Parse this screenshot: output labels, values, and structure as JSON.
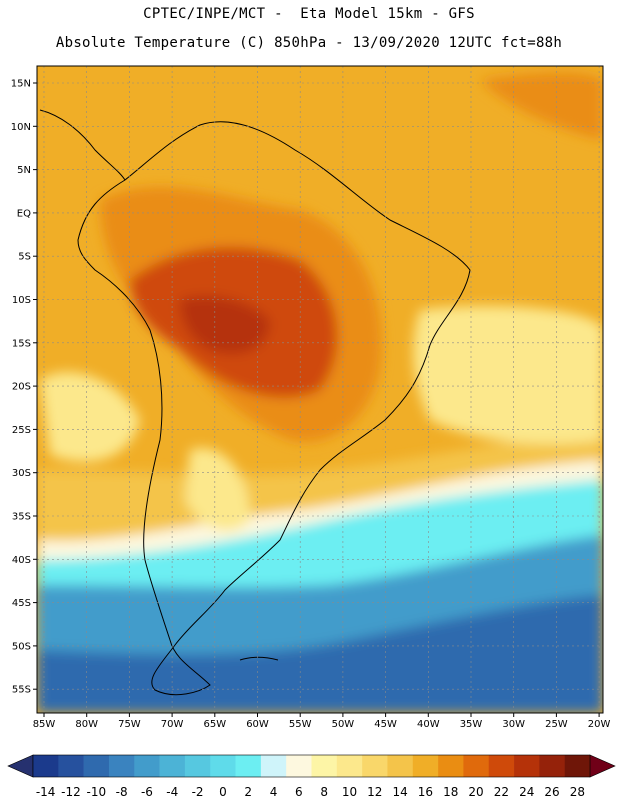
{
  "header": {
    "line1": "CPTEC/INPE/MCT -  Eta Model 15km - GFS",
    "line2": "Absolute Temperature (C) 850hPa - 13/09/2020 12UTC fct=88h"
  },
  "map": {
    "lat_labels": [
      "15N",
      "10N",
      "5N",
      "EQ",
      "5S",
      "10S",
      "15S",
      "20S",
      "25S",
      "30S",
      "35S",
      "40S",
      "45S",
      "50S",
      "55S"
    ],
    "lon_labels": [
      "85W",
      "80W",
      "75W",
      "70W",
      "65W",
      "60W",
      "55W",
      "50W",
      "45W",
      "40W",
      "35W",
      "30W",
      "25W",
      "20W"
    ]
  },
  "colorbar": {
    "labels": [
      "-14",
      "-12",
      "-10",
      "-8",
      "-6",
      "-4",
      "-2",
      "0",
      "2",
      "4",
      "6",
      "8",
      "10",
      "12",
      "14",
      "16",
      "18",
      "20",
      "22",
      "24",
      "26",
      "28"
    ],
    "colors": [
      "#1b3a8c",
      "#26519e",
      "#2f6aae",
      "#3a83bf",
      "#429ccb",
      "#4cb3d6",
      "#56c8e0",
      "#5fdbea",
      "#6ceef2",
      "#cff4fa",
      "#fdf8df",
      "#fdf5a6",
      "#fce88c",
      "#f9d76a",
      "#f4c44a",
      "#f0ae27",
      "#ea8d12",
      "#e06a0c",
      "#cf4a0a",
      "#b53209",
      "#95220a",
      "#6f1608"
    ],
    "arrow_left": "#26316f",
    "arrow_right": "#700018"
  },
  "palette": {
    "deep_ocean": "#2f6aae",
    "cold": "#429ccb",
    "cyan": "#6ceef2",
    "pale": "#cff4fa",
    "cream": "#fdf8df",
    "yellow": "#fce88c",
    "gold": "#f4c44a",
    "orange": "#f0ae27",
    "dark_orange": "#ea8d12",
    "hot": "#cf4a0a",
    "very_hot": "#b53209"
  }
}
